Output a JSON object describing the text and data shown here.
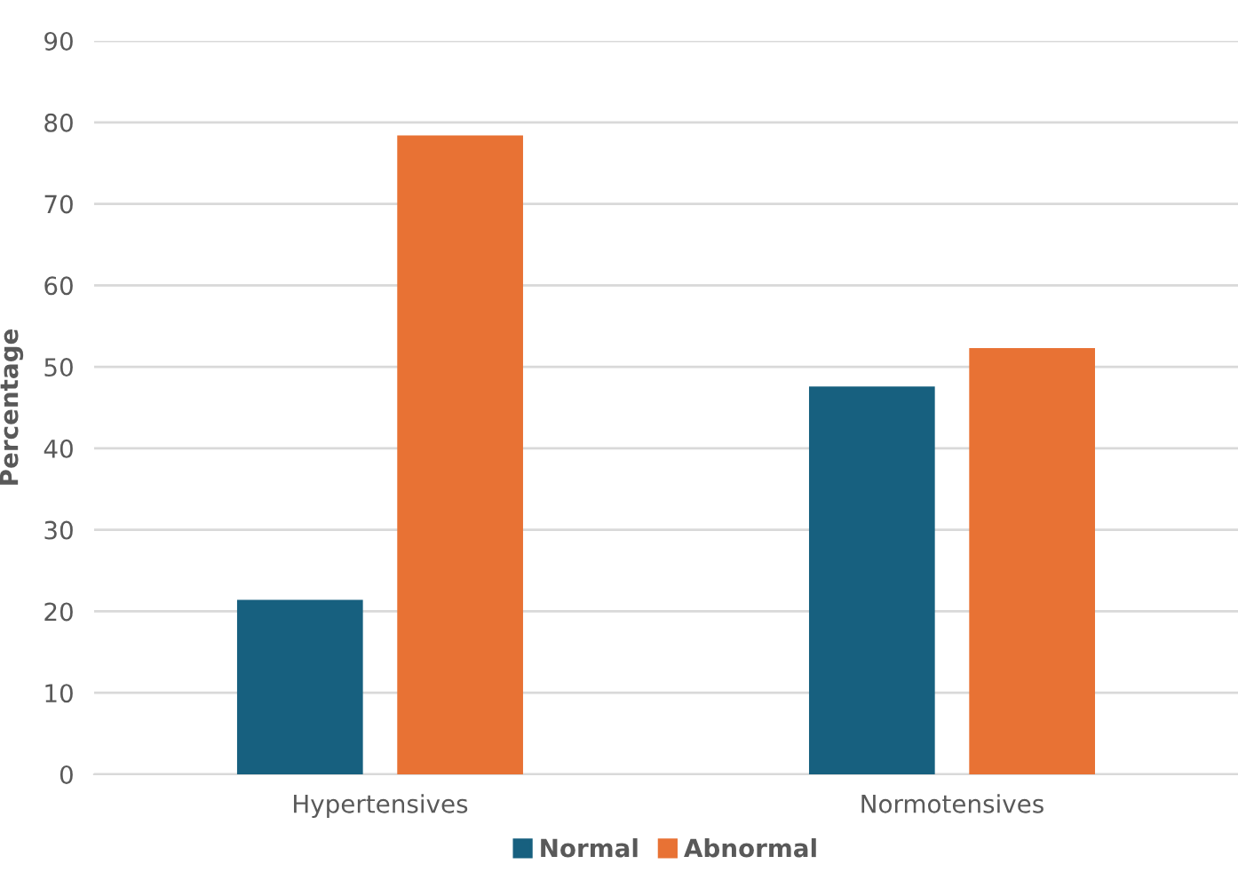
{
  "chart_data": {
    "type": "bar",
    "ylabel": "Percentage",
    "categories": [
      "Hypertensives",
      "Normotensives"
    ],
    "series": [
      {
        "name": "Normal",
        "color": "#17607f",
        "values": [
          21.4,
          47.6
        ]
      },
      {
        "name": "Abnormal",
        "color": "#e87234",
        "values": [
          78.4,
          52.3
        ]
      }
    ],
    "ylim": [
      0,
      90
    ],
    "yticks": [
      0,
      10,
      20,
      30,
      40,
      50,
      60,
      70,
      80,
      90
    ],
    "grid": "y",
    "legend": "bottom"
  }
}
